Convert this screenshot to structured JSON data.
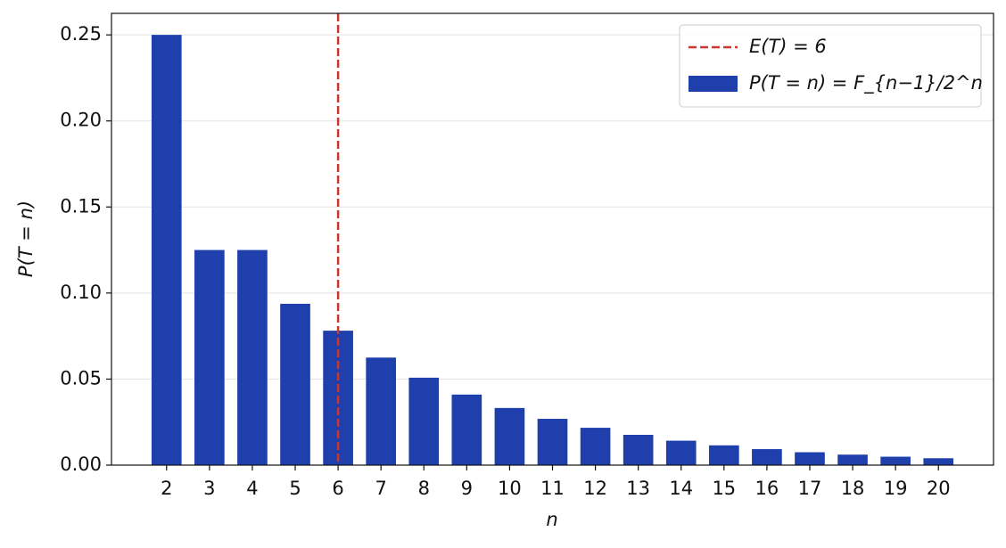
{
  "chart_data": {
    "type": "bar",
    "x": [
      2,
      3,
      4,
      5,
      6,
      7,
      8,
      9,
      10,
      11,
      12,
      13,
      14,
      15,
      16,
      17,
      18,
      19,
      20
    ],
    "series": [
      {
        "name": "P(T = n) = F_{n−1}/2^n",
        "color": "#1f3fad",
        "values": [
          0.25,
          0.125,
          0.125,
          0.09375,
          0.078125,
          0.0625,
          0.0508,
          0.041,
          0.0332,
          0.0269,
          0.0217,
          0.0176,
          0.0142,
          0.0115,
          0.0093,
          0.0075,
          0.0061,
          0.0049,
          0.004
        ]
      }
    ],
    "vline": {
      "name": "E(T) = 6",
      "x": 6,
      "color": "#c8372d"
    },
    "xlabel": "n",
    "ylabel": "P(T = n)",
    "xlim": [
      0.715,
      21.285
    ],
    "xticks": [
      2,
      3,
      4,
      5,
      6,
      7,
      8,
      9,
      10,
      11,
      12,
      13,
      14,
      15,
      16,
      17,
      18,
      19,
      20
    ],
    "ylim": [
      0,
      0.2625
    ],
    "yticks": [
      {
        "value": 0,
        "label": "0.00"
      },
      {
        "value": 0.05,
        "label": "0.05"
      },
      {
        "value": 0.1,
        "label": "0.10"
      },
      {
        "value": 0.15,
        "label": "0.15"
      },
      {
        "value": 0.2,
        "label": "0.20"
      },
      {
        "value": 0.25,
        "label": "0.25"
      }
    ],
    "grid": true,
    "legend": "upper right"
  }
}
